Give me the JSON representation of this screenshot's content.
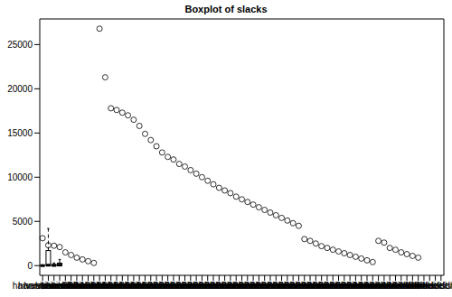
{
  "chart_data": {
    "type": "boxplot",
    "title": "Boxplot of slacks",
    "categories": [
      "harvesttime.S1",
      "harvesttime.S2",
      "harvesttime.S4",
      "traveldist"
    ],
    "color": "#000000",
    "ylim": [
      -1100,
      27900
    ],
    "yticks": [
      0,
      5000,
      10000,
      15000,
      20000,
      25000
    ],
    "grid": false,
    "boxes": [
      {
        "whisker_low": 0,
        "q1": 0,
        "median": 0,
        "q3": 30,
        "whisker_high": 80,
        "outliers": [
          3100,
          2300,
          2250,
          2100,
          1500,
          1200,
          900,
          700,
          500,
          300
        ]
      },
      {
        "whisker_low": 0,
        "q1": 0,
        "median": 50,
        "q3": 1700,
        "whisker_high": 4200,
        "outliers": [
          26800,
          21300,
          17800,
          17600,
          17300,
          17000,
          16500,
          15800,
          14900,
          14200,
          13500,
          12800,
          12300,
          12000,
          11500,
          11200,
          10800,
          10400,
          10000,
          9600,
          9200,
          8800,
          8500,
          8200,
          7800,
          7500,
          7200,
          6900,
          6600,
          6300,
          6000,
          5700,
          5400,
          5100,
          4800,
          4500
        ]
      },
      {
        "whisker_low": 0,
        "q1": 0,
        "median": 20,
        "q3": 120,
        "whisker_high": 300,
        "outliers": [
          3000,
          2800,
          2500,
          2200,
          2000,
          1800,
          1600,
          1400,
          1200,
          1000,
          800,
          600,
          400
        ]
      },
      {
        "whisker_low": 0,
        "q1": 0,
        "median": 60,
        "q3": 280,
        "whisker_high": 700,
        "outliers": [
          2800,
          2600,
          2000,
          1800,
          1500,
          1300,
          1100,
          900
        ]
      }
    ]
  }
}
